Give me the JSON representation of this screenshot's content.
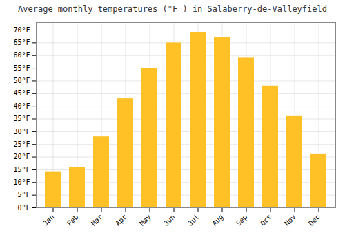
{
  "chart_data": {
    "type": "bar",
    "title": "Average monthly temperatures (°F ) in Salaberry-de-Valleyfield",
    "categories": [
      "Jan",
      "Feb",
      "Mar",
      "Apr",
      "May",
      "Jun",
      "Jul",
      "Aug",
      "Sep",
      "Oct",
      "Nov",
      "Dec"
    ],
    "values": [
      14,
      16,
      28,
      43,
      55,
      65,
      69,
      67,
      59,
      48,
      36,
      21
    ],
    "color": "#FFC125",
    "ylim": [
      0,
      73
    ],
    "yticks": [
      {
        "value": 0,
        "label": "0°F"
      },
      {
        "value": 5,
        "label": "5°F"
      },
      {
        "value": 10,
        "label": "10°F"
      },
      {
        "value": 15,
        "label": "15°F"
      },
      {
        "value": 20,
        "label": "20°F"
      },
      {
        "value": 25,
        "label": "25°F"
      },
      {
        "value": 30,
        "label": "30°F"
      },
      {
        "value": 35,
        "label": "35°F"
      },
      {
        "value": 40,
        "label": "40°F"
      },
      {
        "value": 45,
        "label": "45°F"
      },
      {
        "value": 50,
        "label": "50°F"
      },
      {
        "value": 55,
        "label": "55°F"
      },
      {
        "value": 60,
        "label": "60°F"
      },
      {
        "value": 65,
        "label": "65°F"
      },
      {
        "value": 70,
        "label": "70°F"
      }
    ],
    "grid": true
  }
}
